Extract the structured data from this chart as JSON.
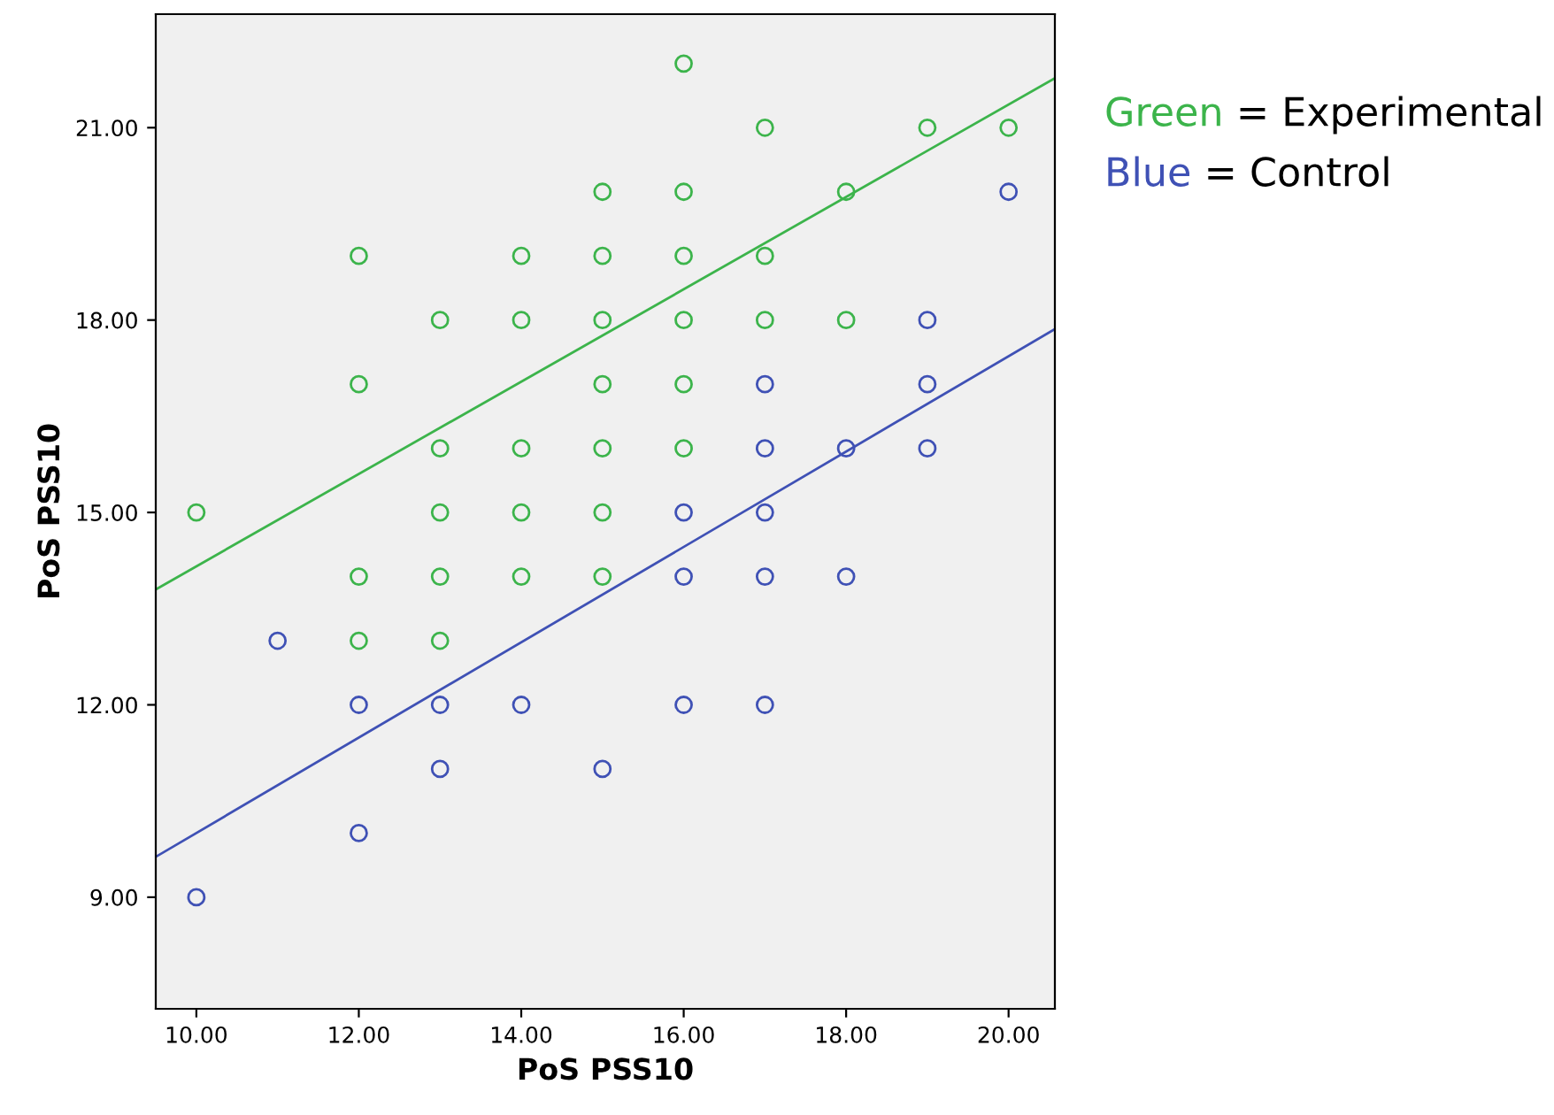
{
  "chart_data": {
    "type": "scatter",
    "xlabel": "PoS PSS10",
    "ylabel": "PoS PSS10",
    "grid": false,
    "xlim": [
      9.5,
      20.57
    ],
    "ylim": [
      7.26,
      22.77
    ],
    "xticks": [
      {
        "value": 10,
        "label": "10.00"
      },
      {
        "value": 12,
        "label": "12.00"
      },
      {
        "value": 14,
        "label": "14.00"
      },
      {
        "value": 16,
        "label": "16.00"
      },
      {
        "value": 18,
        "label": "18.00"
      },
      {
        "value": 20,
        "label": "20.00"
      }
    ],
    "yticks": [
      {
        "value": 9,
        "label": "9.00"
      },
      {
        "value": 12,
        "label": "12.00"
      },
      {
        "value": 15,
        "label": "15.00"
      },
      {
        "value": 18,
        "label": "18.00"
      },
      {
        "value": 21,
        "label": "21.00"
      }
    ],
    "series": [
      {
        "marker": "circle",
        "color": "#3cb44b",
        "x": [
          10,
          12,
          12,
          12,
          12,
          13,
          13,
          13,
          13,
          13,
          14,
          14,
          14,
          14,
          14,
          15,
          15,
          15,
          15,
          15,
          15,
          15,
          16,
          16,
          16,
          16,
          16,
          16,
          17,
          17,
          17,
          18,
          18,
          19,
          20
        ],
        "values": [
          15,
          19,
          17,
          14,
          13,
          18,
          16,
          15,
          14,
          13,
          19,
          18,
          16,
          15,
          14,
          20,
          19,
          18,
          17,
          16,
          15,
          14,
          22,
          20,
          19,
          18,
          17,
          16,
          21,
          19,
          18,
          20,
          18,
          21,
          21
        ]
      },
      {
        "marker": "circle",
        "color": "#3f51b5",
        "x": [
          10,
          11,
          12,
          12,
          13,
          13,
          14,
          15,
          16,
          16,
          16,
          17,
          17,
          17,
          17,
          17,
          18,
          18,
          19,
          19,
          19,
          20
        ],
        "values": [
          9,
          13,
          12,
          10,
          12,
          11,
          12,
          11,
          15,
          14,
          12,
          17,
          16,
          15,
          14,
          12,
          16,
          14,
          18,
          17,
          16,
          20
        ]
      },
      {
        "type": "line",
        "color": "#3cb44b",
        "x": [
          9.5,
          20.57
        ],
        "values": [
          13.8,
          21.77
        ]
      },
      {
        "type": "line",
        "color": "#3f51b5",
        "x": [
          9.5,
          20.57
        ],
        "values": [
          9.63,
          17.86
        ]
      }
    ],
    "annotations": [
      "Green = Experimental",
      "Blue = Control"
    ]
  }
}
